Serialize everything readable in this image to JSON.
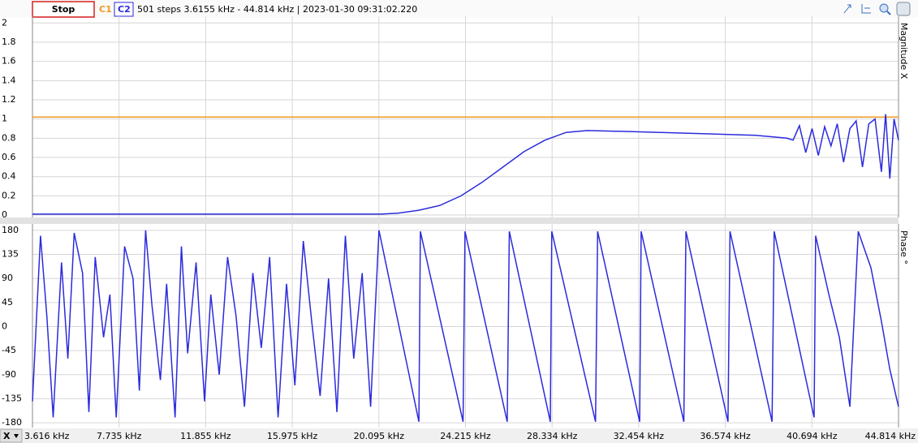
{
  "toolbar": {
    "button": "Stop",
    "status": "501 steps  3.6155 kHz - 44.814 kHz | 2023-01-30 09:31:02.220"
  },
  "xaxis_selector": "X",
  "chart_data": [
    {
      "type": "line",
      "y_label": "Magnitude X",
      "xlim": [
        3.616,
        44.814
      ],
      "xticks": [
        3.616,
        7.735,
        11.855,
        15.975,
        20.095,
        24.215,
        28.334,
        32.454,
        36.574,
        40.694,
        44.814
      ],
      "ylim": [
        -0.025,
        2.07
      ],
      "yticks": [
        0,
        0.2,
        0.4,
        0.6,
        0.8,
        1,
        1.2,
        1.4,
        1.6,
        1.8,
        2
      ],
      "grid": true,
      "series": [
        {
          "name": "C1",
          "color": "#f09a20",
          "x": [
            3.616,
            10,
            20,
            30,
            40,
            44.814
          ],
          "values": [
            1.02,
            1.02,
            1.02,
            1.02,
            1.02,
            1.02
          ]
        },
        {
          "name": "C2",
          "color": "#2b2bdc",
          "x": [
            3.616,
            6,
            10,
            14,
            18,
            20.2,
            21,
            22,
            23,
            24,
            25,
            26,
            27,
            28,
            29,
            30,
            32,
            35,
            38,
            39.5,
            39.8,
            40.1,
            40.4,
            40.7,
            41,
            41.3,
            41.6,
            41.9,
            42.2,
            42.5,
            42.8,
            43.1,
            43.4,
            43.7,
            44,
            44.2,
            44.4,
            44.6,
            44.814
          ],
          "values": [
            0.01,
            0.01,
            0.01,
            0.01,
            0.01,
            0.01,
            0.02,
            0.05,
            0.1,
            0.2,
            0.34,
            0.5,
            0.66,
            0.78,
            0.86,
            0.88,
            0.87,
            0.85,
            0.83,
            0.8,
            0.78,
            0.93,
            0.65,
            0.9,
            0.62,
            0.92,
            0.72,
            0.95,
            0.55,
            0.9,
            0.98,
            0.5,
            0.95,
            1.0,
            0.45,
            1.05,
            0.38,
            1.0,
            0.78
          ]
        }
      ]
    },
    {
      "type": "line",
      "y_label": "Phase °",
      "xlim": [
        3.616,
        44.814
      ],
      "xticks": [
        {
          "value": 3.616,
          "label": "3.616 kHz"
        },
        {
          "value": 7.735,
          "label": "7.735 kHz"
        },
        {
          "value": 11.855,
          "label": "11.855 kHz"
        },
        {
          "value": 15.975,
          "label": "15.975 kHz"
        },
        {
          "value": 20.095,
          "label": "20.095 kHz"
        },
        {
          "value": 24.215,
          "label": "24.215 kHz"
        },
        {
          "value": 28.334,
          "label": "28.334 kHz"
        },
        {
          "value": 32.454,
          "label": "32.454 kHz"
        },
        {
          "value": 36.574,
          "label": "36.574 kHz"
        },
        {
          "value": 40.694,
          "label": "40.694 kHz"
        },
        {
          "value": 44.814,
          "label": "44.814 kHz"
        }
      ],
      "ylim": [
        -189,
        192
      ],
      "yticks": [
        -180,
        -135,
        -90,
        -45,
        0,
        45,
        90,
        135,
        180
      ],
      "grid": true,
      "series": [
        {
          "color": "#2b2bdc",
          "x": [
            3.616,
            4.0,
            4.3,
            4.6,
            5.0,
            5.3,
            5.6,
            6.0,
            6.3,
            6.6,
            7.0,
            7.3,
            7.6,
            8.0,
            8.4,
            8.7,
            9.0,
            9.3,
            9.7,
            10.0,
            10.4,
            10.7,
            11.0,
            11.4,
            11.8,
            12.1,
            12.5,
            12.9,
            13.3,
            13.7,
            14.1,
            14.5,
            14.9,
            15.3,
            15.7,
            16.1,
            16.5,
            16.9,
            17.3,
            17.7,
            18.1,
            18.5,
            18.9,
            19.3,
            19.7,
            20.1,
            22.0,
            22.07,
            24.1,
            24.19,
            26.2,
            26.3,
            28.25,
            28.32,
            30.4,
            30.5,
            32.5,
            32.57,
            34.6,
            34.7,
            36.7,
            36.8,
            38.8,
            38.9,
            40.8,
            40.87,
            41.5,
            42.0,
            42.5,
            42.9,
            43.5,
            44.0,
            44.4,
            44.814
          ],
          "values": [
            -140,
            170,
            20,
            -170,
            120,
            -60,
            175,
            100,
            -160,
            130,
            -20,
            60,
            -170,
            150,
            90,
            -120,
            180,
            40,
            -100,
            80,
            -170,
            150,
            -50,
            120,
            -140,
            60,
            -90,
            130,
            20,
            -150,
            100,
            -40,
            130,
            -170,
            80,
            -110,
            160,
            10,
            -130,
            90,
            -160,
            170,
            -60,
            100,
            -150,
            180,
            -178,
            178,
            -178,
            178,
            -178,
            178,
            -178,
            178,
            -178,
            178,
            -178,
            178,
            -178,
            178,
            -178,
            178,
            -178,
            178,
            -170,
            170,
            60,
            -20,
            -150,
            178,
            110,
            10,
            -80,
            -150
          ]
        }
      ]
    }
  ]
}
